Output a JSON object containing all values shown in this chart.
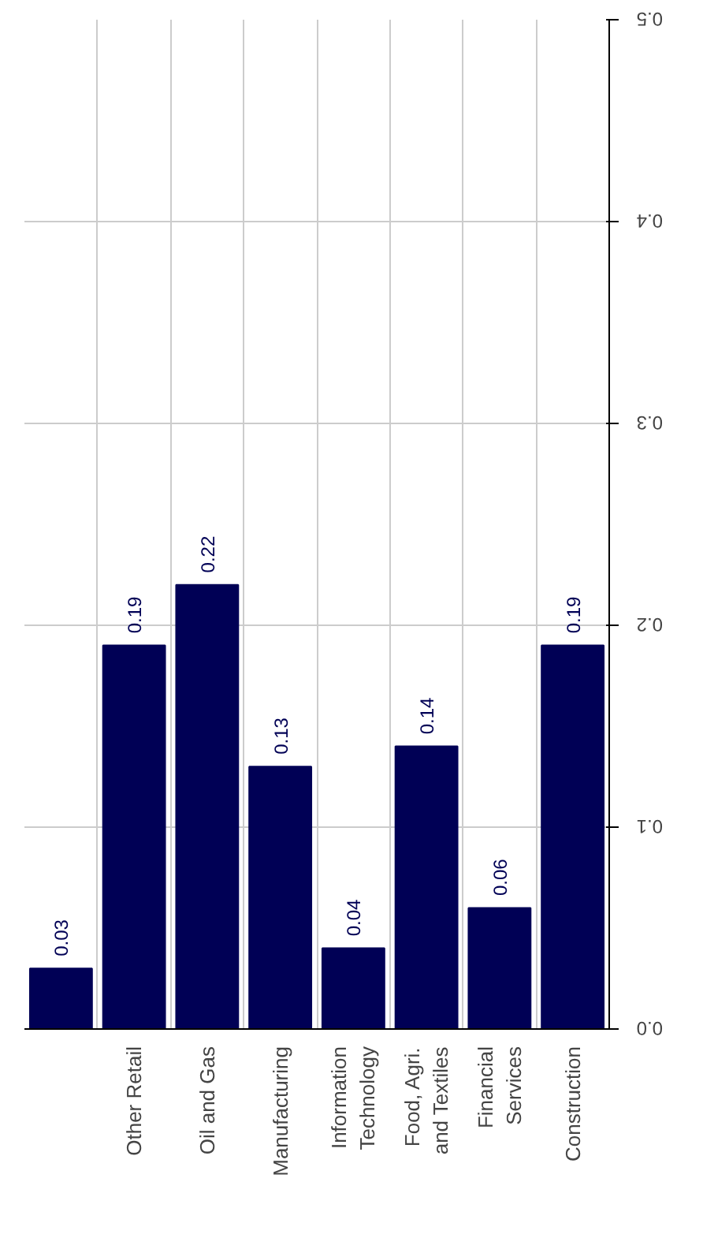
{
  "chart_data": {
    "type": "bar",
    "categories": [
      null,
      "Other Retail",
      "Oil and Gas",
      "Manufacturing",
      "Information\nTechnology",
      "Food, Agri.\nand Textiles",
      "Financial\nServices",
      "Construction"
    ],
    "values": [
      0.03,
      0.19,
      0.22,
      0.13,
      0.04,
      0.14,
      0.06,
      0.19
    ],
    "color": "#000055",
    "data_labels": true,
    "grid": true,
    "ylim": [
      0,
      0.5
    ],
    "yticks": [
      {
        "value": 0,
        "label": "0.0"
      },
      0.1,
      0.2,
      0.3,
      0.4,
      0.5
    ]
  }
}
